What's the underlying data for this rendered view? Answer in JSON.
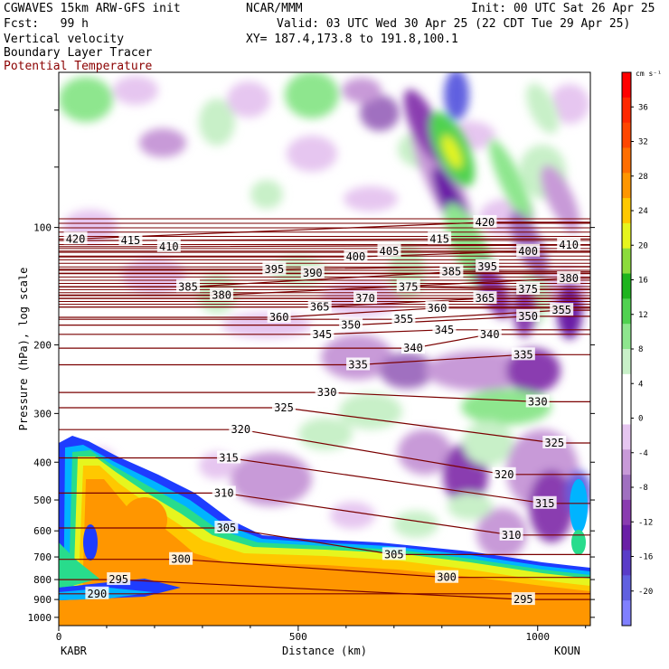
{
  "header": {
    "model": "CGWAVES 15km ARW-GFS init",
    "center": "NCAR/MMM",
    "init": "Init: 00 UTC Sat 26 Apr 25",
    "fcst": "Fcst:   99 h",
    "valid": "Valid: 03 UTC Wed 30 Apr 25 (22 CDT Tue 29 Apr 25)",
    "field1": "Vertical velocity",
    "xy": "XY= 187.4,173.8 to 191.8,100.1",
    "field2": "Boundary Layer Tracer",
    "field3": "Potential Temperature"
  },
  "colors": {
    "contour": "#7a0000",
    "scale": [
      "#8080ff",
      "#6060e0",
      "#5a3cc8",
      "#6a1fa6",
      "#8a3cb0",
      "#a070c0",
      "#c89ad8",
      "#e6c6f0",
      "#ffffff",
      "#ffffff",
      "#c8f0c8",
      "#8ee68e",
      "#50d250",
      "#1eb41e",
      "#8cdc3c",
      "#e6f51e",
      "#ffc800",
      "#ff9600",
      "#ff6e00",
      "#ff4600",
      "#ff2800",
      "#ff0000"
    ]
  },
  "chart_data": {
    "type": "heatmap",
    "xlabel": "Distance (km)",
    "ylabel": "Pressure (hPa), log scale",
    "x_ticks": [
      "0",
      "500",
      "1000"
    ],
    "x_range": [
      0,
      1110
    ],
    "y_ticks": [
      "100",
      "200",
      "300",
      "400",
      "500",
      "600",
      "700",
      "800",
      "900",
      "1000"
    ],
    "y_range": [
      1050,
      40
    ],
    "y_scale": "log",
    "x_endpoints": [
      "KABR",
      "KOUN"
    ],
    "colorbar": {
      "unit": "cm s⁻¹",
      "labels": [
        "36",
        "32",
        "28",
        "24",
        "20",
        "16",
        "12",
        "8",
        "4",
        "0",
        "-4",
        "-8",
        "-12",
        "-16",
        "-20"
      ]
    },
    "series": [
      {
        "name": "Vertical velocity",
        "kind": "filled"
      },
      {
        "name": "Boundary Layer Tracer",
        "kind": "filled"
      },
      {
        "name": "Potential Temperature",
        "kind": "contour",
        "labels": [
          {
            "x": 35,
            "p": 107,
            "v": "420"
          },
          {
            "x": 150,
            "p": 108,
            "v": "415"
          },
          {
            "x": 230,
            "p": 112,
            "v": "410"
          },
          {
            "x": 450,
            "p": 128,
            "v": "395"
          },
          {
            "x": 530,
            "p": 131,
            "v": "390"
          },
          {
            "x": 270,
            "p": 142,
            "v": "385"
          },
          {
            "x": 340,
            "p": 149,
            "v": "380"
          },
          {
            "x": 620,
            "p": 119,
            "v": "400"
          },
          {
            "x": 690,
            "p": 115,
            "v": "405"
          },
          {
            "x": 795,
            "p": 107,
            "v": "415"
          },
          {
            "x": 890,
            "p": 97,
            "v": "420"
          },
          {
            "x": 820,
            "p": 130,
            "v": "385"
          },
          {
            "x": 895,
            "p": 126,
            "v": "395"
          },
          {
            "x": 980,
            "p": 115,
            "v": "400"
          },
          {
            "x": 1065,
            "p": 111,
            "v": "410"
          },
          {
            "x": 1065,
            "p": 135,
            "v": "380"
          },
          {
            "x": 730,
            "p": 142,
            "v": "375"
          },
          {
            "x": 640,
            "p": 152,
            "v": "370"
          },
          {
            "x": 980,
            "p": 144,
            "v": "375"
          },
          {
            "x": 545,
            "p": 160,
            "v": "365"
          },
          {
            "x": 460,
            "p": 170,
            "v": "360"
          },
          {
            "x": 790,
            "p": 161,
            "v": "360"
          },
          {
            "x": 890,
            "p": 152,
            "v": "365"
          },
          {
            "x": 1050,
            "p": 163,
            "v": "355"
          },
          {
            "x": 720,
            "p": 172,
            "v": "355"
          },
          {
            "x": 980,
            "p": 169,
            "v": "350"
          },
          {
            "x": 610,
            "p": 178,
            "v": "350"
          },
          {
            "x": 550,
            "p": 188,
            "v": "345"
          },
          {
            "x": 805,
            "p": 183,
            "v": "345"
          },
          {
            "x": 900,
            "p": 188,
            "v": "340"
          },
          {
            "x": 740,
            "p": 204,
            "v": "340"
          },
          {
            "x": 625,
            "p": 225,
            "v": "335"
          },
          {
            "x": 970,
            "p": 212,
            "v": "335"
          },
          {
            "x": 560,
            "p": 265,
            "v": "330"
          },
          {
            "x": 1000,
            "p": 280,
            "v": "330"
          },
          {
            "x": 470,
            "p": 290,
            "v": "325"
          },
          {
            "x": 1035,
            "p": 357,
            "v": "325"
          },
          {
            "x": 380,
            "p": 330,
            "v": "320"
          },
          {
            "x": 930,
            "p": 430,
            "v": "320"
          },
          {
            "x": 355,
            "p": 390,
            "v": "315"
          },
          {
            "x": 1015,
            "p": 510,
            "v": "315"
          },
          {
            "x": 345,
            "p": 480,
            "v": "310"
          },
          {
            "x": 945,
            "p": 615,
            "v": "310"
          },
          {
            "x": 350,
            "p": 590,
            "v": "305"
          },
          {
            "x": 700,
            "p": 690,
            "v": "305"
          },
          {
            "x": 255,
            "p": 710,
            "v": "300"
          },
          {
            "x": 810,
            "p": 790,
            "v": "300"
          },
          {
            "x": 125,
            "p": 800,
            "v": "295"
          },
          {
            "x": 970,
            "p": 900,
            "v": "295"
          },
          {
            "x": 80,
            "p": 870,
            "v": "290"
          }
        ]
      }
    ]
  }
}
